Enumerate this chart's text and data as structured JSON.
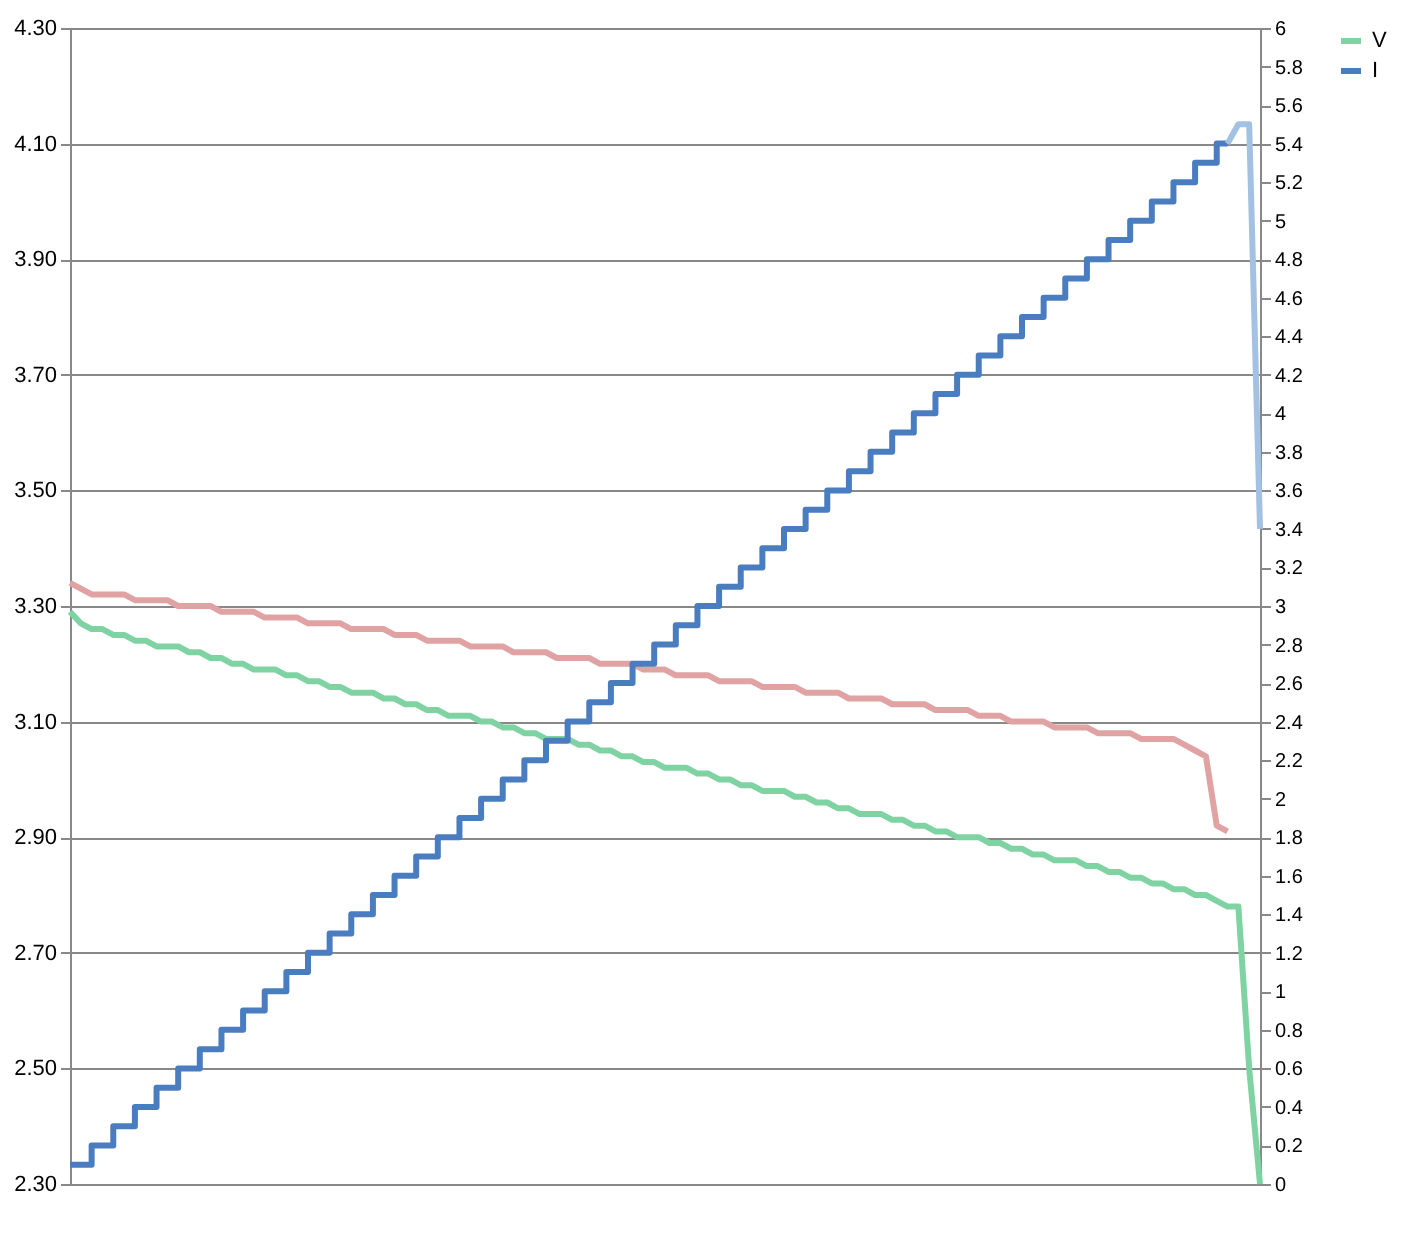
{
  "chart_data": {
    "type": "line",
    "categories": [
      null,
      null,
      null,
      null,
      null,
      null,
      null,
      null,
      null,
      null,
      null,
      null,
      null,
      null,
      null,
      null,
      null,
      null,
      null,
      null,
      null,
      null,
      null,
      null,
      null,
      null,
      null,
      null,
      null,
      null,
      null,
      null,
      null,
      null,
      null,
      null,
      null,
      null,
      null,
      null,
      null,
      null,
      null,
      null,
      null,
      null,
      null,
      null,
      null,
      null,
      null,
      null,
      null,
      null,
      null,
      null,
      null,
      null,
      null,
      null,
      null,
      null,
      null,
      null,
      null,
      null,
      null,
      null,
      null,
      null,
      null,
      null,
      null,
      null,
      null,
      null,
      null,
      null,
      null,
      null,
      null,
      null,
      null,
      null,
      null,
      null,
      null,
      null,
      null,
      null,
      null,
      null,
      null,
      null,
      null,
      null,
      null,
      null,
      null,
      null,
      null,
      null,
      null,
      null,
      null,
      null,
      null,
      null,
      null,
      null,
      null
    ],
    "series": [
      {
        "color": "#e0a2a2",
        "values": [
          3.34,
          3.33,
          3.32,
          3.32,
          3.32,
          3.32,
          3.31,
          3.31,
          3.31,
          3.31,
          3.3,
          3.3,
          3.3,
          3.3,
          3.29,
          3.29,
          3.29,
          3.29,
          3.28,
          3.28,
          3.28,
          3.28,
          3.27,
          3.27,
          3.27,
          3.27,
          3.26,
          3.26,
          3.26,
          3.26,
          3.25,
          3.25,
          3.25,
          3.24,
          3.24,
          3.24,
          3.24,
          3.23,
          3.23,
          3.23,
          3.23,
          3.22,
          3.22,
          3.22,
          3.22,
          3.21,
          3.21,
          3.21,
          3.21,
          3.2,
          3.2,
          3.2,
          3.2,
          3.19,
          3.19,
          3.19,
          3.18,
          3.18,
          3.18,
          3.18,
          3.17,
          3.17,
          3.17,
          3.17,
          3.16,
          3.16,
          3.16,
          3.16,
          3.15,
          3.15,
          3.15,
          3.15,
          3.14,
          3.14,
          3.14,
          3.14,
          3.13,
          3.13,
          3.13,
          3.13,
          3.12,
          3.12,
          3.12,
          3.12,
          3.11,
          3.11,
          3.11,
          3.1,
          3.1,
          3.1,
          3.1,
          3.09,
          3.09,
          3.09,
          3.09,
          3.08,
          3.08,
          3.08,
          3.08,
          3.07,
          3.07,
          3.07,
          3.07,
          3.06,
          3.05,
          3.04,
          2.92,
          2.91,
          null,
          null,
          null
        ]
      },
      {
        "name": "V",
        "color": "#7fd3a2",
        "values": [
          3.29,
          3.27,
          3.26,
          3.26,
          3.25,
          3.25,
          3.24,
          3.24,
          3.23,
          3.23,
          3.23,
          3.22,
          3.22,
          3.21,
          3.21,
          3.2,
          3.2,
          3.19,
          3.19,
          3.19,
          3.18,
          3.18,
          3.17,
          3.17,
          3.16,
          3.16,
          3.15,
          3.15,
          3.15,
          3.14,
          3.14,
          3.13,
          3.13,
          3.12,
          3.12,
          3.11,
          3.11,
          3.11,
          3.1,
          3.1,
          3.09,
          3.09,
          3.08,
          3.08,
          3.07,
          3.07,
          3.07,
          3.06,
          3.06,
          3.05,
          3.05,
          3.04,
          3.04,
          3.03,
          3.03,
          3.02,
          3.02,
          3.02,
          3.01,
          3.01,
          3.0,
          3.0,
          2.99,
          2.99,
          2.98,
          2.98,
          2.98,
          2.97,
          2.97,
          2.96,
          2.96,
          2.95,
          2.95,
          2.94,
          2.94,
          2.94,
          2.93,
          2.93,
          2.92,
          2.92,
          2.91,
          2.91,
          2.9,
          2.9,
          2.9,
          2.89,
          2.89,
          2.88,
          2.88,
          2.87,
          2.87,
          2.86,
          2.86,
          2.86,
          2.85,
          2.85,
          2.84,
          2.84,
          2.83,
          2.83,
          2.82,
          2.82,
          2.81,
          2.81,
          2.8,
          2.8,
          2.79,
          2.78,
          2.78,
          2.5,
          2.3
        ]
      },
      {
        "name": "I",
        "type": "step",
        "axis": "y2",
        "color": "#4a7dbf",
        "values": [
          0.1,
          0.1,
          0.2,
          0.2,
          0.3,
          0.3,
          0.4,
          0.4,
          0.5,
          0.5,
          0.6,
          0.6,
          0.7,
          0.7,
          0.8,
          0.8,
          0.9,
          0.9,
          1.0,
          1.0,
          1.1,
          1.1,
          1.2,
          1.2,
          1.3,
          1.3,
          1.4,
          1.4,
          1.5,
          1.5,
          1.6,
          1.6,
          1.7,
          1.7,
          1.8,
          1.8,
          1.9,
          1.9,
          2.0,
          2.0,
          2.1,
          2.1,
          2.2,
          2.2,
          2.3,
          2.3,
          2.4,
          2.4,
          2.5,
          2.5,
          2.6,
          2.6,
          2.7,
          2.7,
          2.8,
          2.8,
          2.9,
          2.9,
          3.0,
          3.0,
          3.1,
          3.1,
          3.2,
          3.2,
          3.3,
          3.3,
          3.4,
          3.4,
          3.5,
          3.5,
          3.6,
          3.6,
          3.7,
          3.7,
          3.8,
          3.8,
          3.9,
          3.9,
          4.0,
          4.0,
          4.1,
          4.1,
          4.2,
          4.2,
          4.3,
          4.3,
          4.4,
          4.4,
          4.5,
          4.5,
          4.6,
          4.6,
          4.7,
          4.7,
          4.8,
          4.8,
          4.9,
          4.9,
          5.0,
          5.0,
          5.1,
          5.1,
          5.2,
          5.2,
          5.3,
          5.3,
          5.4,
          5.4,
          null,
          null,
          null
        ]
      },
      {
        "axis": "y2",
        "color": "#a3c1e3",
        "values": [
          null,
          null,
          null,
          null,
          null,
          null,
          null,
          null,
          null,
          null,
          null,
          null,
          null,
          null,
          null,
          null,
          null,
          null,
          null,
          null,
          null,
          null,
          null,
          null,
          null,
          null,
          null,
          null,
          null,
          null,
          null,
          null,
          null,
          null,
          null,
          null,
          null,
          null,
          null,
          null,
          null,
          null,
          null,
          null,
          null,
          null,
          null,
          null,
          null,
          null,
          null,
          null,
          null,
          null,
          null,
          null,
          null,
          null,
          null,
          null,
          null,
          null,
          null,
          null,
          null,
          null,
          null,
          null,
          null,
          null,
          null,
          null,
          null,
          null,
          null,
          null,
          null,
          null,
          null,
          null,
          null,
          null,
          null,
          null,
          null,
          null,
          null,
          null,
          null,
          null,
          null,
          null,
          null,
          null,
          null,
          null,
          null,
          null,
          null,
          null,
          null,
          null,
          null,
          null,
          null,
          null,
          null,
          5.4,
          5.5,
          5.5,
          3.4
        ]
      }
    ],
    "ylim": [
      2.3,
      4.3
    ],
    "yticks": [
      {
        "value": 2.3,
        "label": "2.30"
      },
      {
        "value": 2.5,
        "label": "2.50"
      },
      {
        "value": 2.7,
        "label": "2.70"
      },
      {
        "value": 2.9,
        "label": "2.90"
      },
      {
        "value": 3.1,
        "label": "3.10"
      },
      {
        "value": 3.3,
        "label": "3.30"
      },
      {
        "value": 3.5,
        "label": "3.50"
      },
      {
        "value": 3.7,
        "label": "3.70"
      },
      {
        "value": 3.9,
        "label": "3.90"
      },
      {
        "value": 4.1,
        "label": "4.10"
      },
      {
        "value": 4.3,
        "label": "4.30"
      }
    ],
    "y2lim": [
      0,
      6
    ],
    "y2ticks": [
      0,
      0.2,
      0.4,
      0.6,
      0.8,
      1,
      1.2,
      1.4,
      1.6,
      1.8,
      2,
      2.2,
      2.4,
      2.6,
      2.8,
      3,
      3.2,
      3.4,
      3.6,
      3.8,
      4,
      4.2,
      4.4,
      4.6,
      4.8,
      5,
      5.2,
      5.4,
      5.6,
      5.8,
      6
    ],
    "grid": "y",
    "legend": "right"
  }
}
